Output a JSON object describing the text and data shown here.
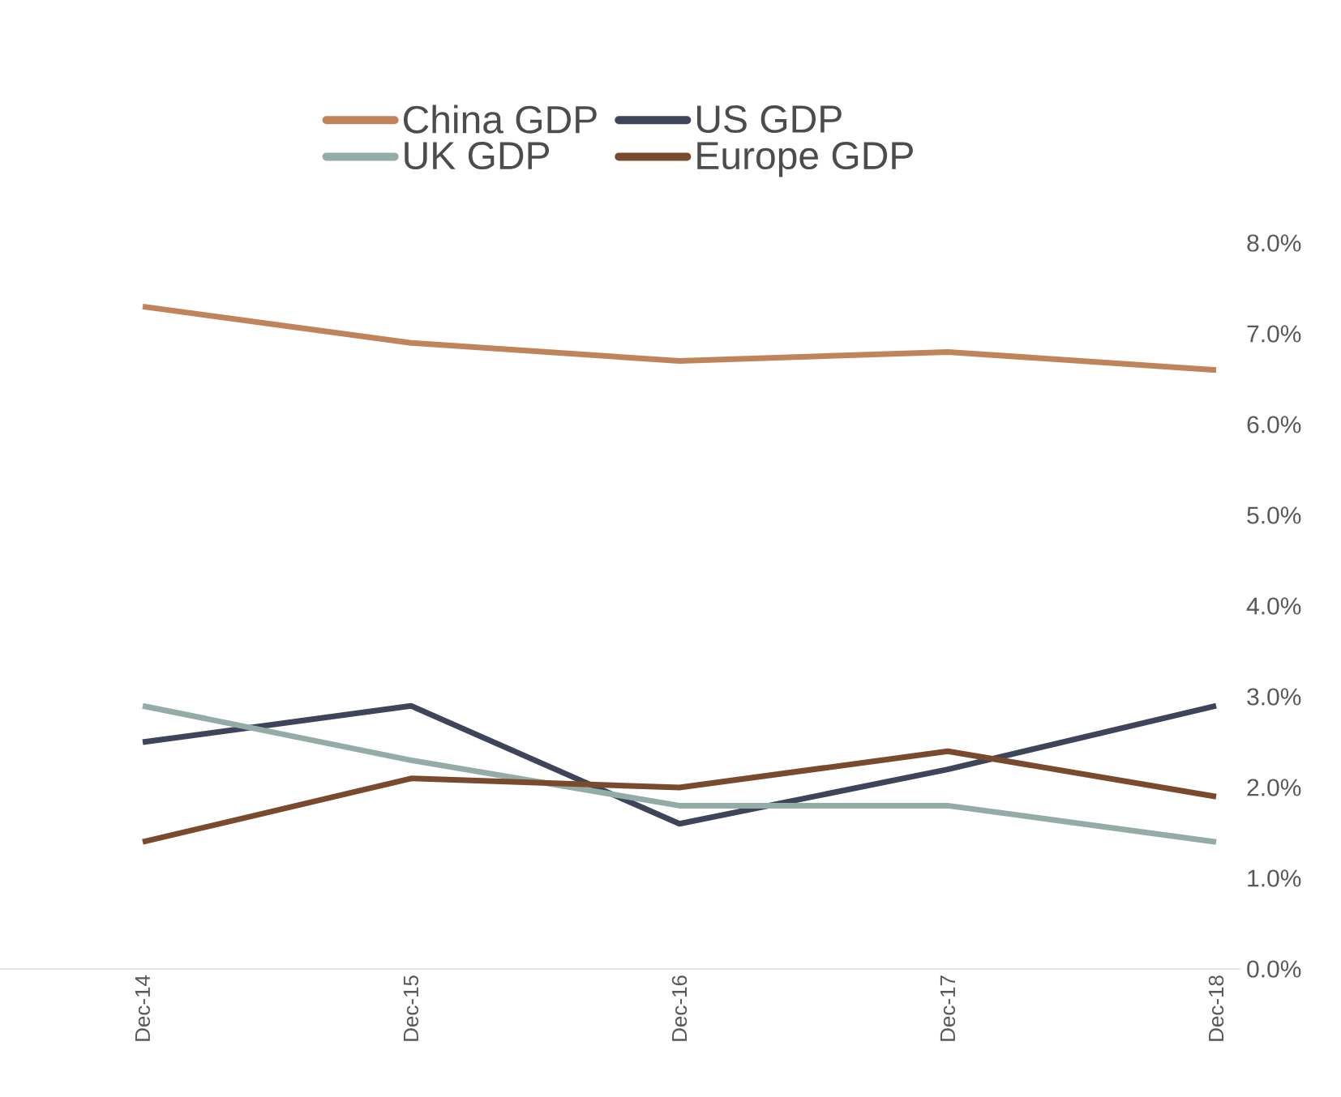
{
  "chart_data": {
    "type": "line",
    "categories": [
      "Dec-14",
      "Dec-15",
      "Dec-16",
      "Dec-17",
      "Dec-18"
    ],
    "series": [
      {
        "name": "China GDP",
        "color": "#c0845a",
        "values": [
          7.3,
          6.9,
          6.7,
          6.8,
          6.6
        ]
      },
      {
        "name": "US GDP",
        "color": "#3e4459",
        "values": [
          2.5,
          2.9,
          1.6,
          2.2,
          2.9
        ]
      },
      {
        "name": "UK GDP",
        "color": "#94aca8",
        "values": [
          2.9,
          2.3,
          1.8,
          1.8,
          1.4
        ]
      },
      {
        "name": "Europe GDP",
        "color": "#7a4a2e",
        "values": [
          1.4,
          2.1,
          2.0,
          2.4,
          1.9
        ]
      }
    ],
    "ylim": [
      0,
      8
    ],
    "yticks": [
      {
        "value": 0,
        "label": "0.0%"
      },
      {
        "value": 1,
        "label": "1.0%"
      },
      {
        "value": 2,
        "label": "2.0%"
      },
      {
        "value": 3,
        "label": "3.0%"
      },
      {
        "value": 4,
        "label": "4.0%"
      },
      {
        "value": 5,
        "label": "5.0%"
      },
      {
        "value": 6,
        "label": "6.0%"
      },
      {
        "value": 7,
        "label": "7.0%"
      },
      {
        "value": 8,
        "label": "8.0%"
      }
    ],
    "grid": false,
    "legend": "top"
  }
}
